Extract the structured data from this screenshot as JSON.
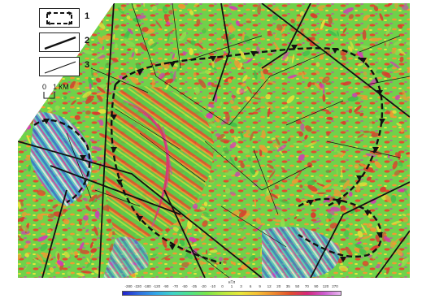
{
  "legend": {
    "items": [
      {
        "number": "1",
        "symbol": "arrow-ring-icon"
      },
      {
        "number": "2",
        "symbol": "thick-line-icon"
      },
      {
        "number": "3",
        "symbol": "thin-line-icon"
      }
    ],
    "scale": {
      "zero": "0",
      "one": "1",
      "unit": "КМ"
    }
  },
  "colorbar": {
    "unit": "нТл",
    "tick_labels": [
      "-280",
      "-220",
      "-180",
      "-120",
      "-90",
      "-70",
      "-50",
      "-35",
      "-20",
      "-10",
      "0",
      "1",
      "3",
      "6",
      "9",
      "12",
      "20",
      "35",
      "50",
      "70",
      "90",
      "120",
      "270"
    ],
    "colors": [
      "#2222cc",
      "#2f6fe0",
      "#32a8e8",
      "#3fd4c8",
      "#4fe38a",
      "#7ae64a",
      "#b9ea3e",
      "#e8e83a",
      "#f7c034",
      "#f08a2e",
      "#e24d2c",
      "#d6267a",
      "#cc5ad0",
      "#e9b9f0"
    ]
  },
  "map": {
    "palette": {
      "green": "#3fbf4a",
      "light_green": "#8fdc4e",
      "yellow": "#e7e23a",
      "orange": "#f09a32",
      "red": "#d93a2c",
      "magenta": "#d23ab8",
      "blue": "#2f7fe0",
      "cyan": "#58c9e0",
      "white": "#f5eef8"
    }
  }
}
